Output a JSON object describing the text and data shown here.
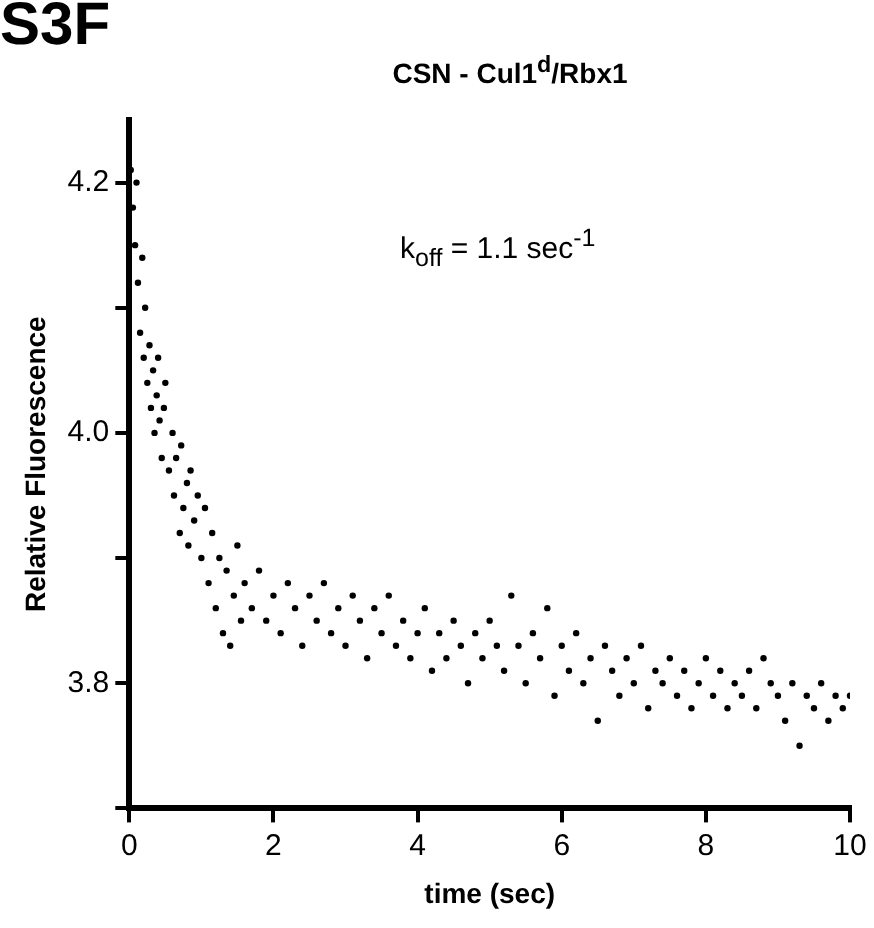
{
  "chart_data": {
    "type": "scatter",
    "title": "CSN - Cul1$^{d}$/Rbx1",
    "xlabel": "time (sec)",
    "ylabel": "Relative Fluorescence",
    "annotations": [
      "S3F",
      "k$_{off}$ = 1.1 sec$^{-1}$"
    ],
    "xlim": [
      0,
      10
    ],
    "xticks": [
      0,
      2,
      4,
      6,
      8,
      10
    ],
    "ylim": [
      3.7,
      4.25
    ],
    "yticks": [
      {
        "value": 3.7,
        "label": null
      },
      3.8,
      {
        "value": 3.9,
        "label": null
      },
      {
        "value": 4.0,
        "label": "4.0"
      },
      {
        "value": 4.1,
        "label": null
      },
      4.2
    ],
    "grid": false,
    "legend": false,
    "marker": "circle",
    "series": [
      {
        "color": "#000000",
        "x": [
          0.02,
          0.05,
          0.08,
          0.1,
          0.12,
          0.15,
          0.18,
          0.2,
          0.22,
          0.25,
          0.28,
          0.3,
          0.33,
          0.35,
          0.38,
          0.4,
          0.42,
          0.45,
          0.48,
          0.5,
          0.55,
          0.6,
          0.62,
          0.65,
          0.7,
          0.72,
          0.75,
          0.8,
          0.82,
          0.85,
          0.9,
          0.95,
          1.0,
          1.05,
          1.1,
          1.15,
          1.2,
          1.25,
          1.3,
          1.35,
          1.4,
          1.45,
          1.5,
          1.55,
          1.6,
          1.7,
          1.8,
          1.9,
          2.0,
          2.1,
          2.2,
          2.3,
          2.4,
          2.5,
          2.6,
          2.7,
          2.8,
          2.9,
          3.0,
          3.1,
          3.2,
          3.3,
          3.4,
          3.5,
          3.6,
          3.7,
          3.8,
          3.9,
          4.0,
          4.1,
          4.2,
          4.3,
          4.4,
          4.5,
          4.6,
          4.7,
          4.8,
          4.9,
          5.0,
          5.1,
          5.2,
          5.3,
          5.4,
          5.5,
          5.6,
          5.7,
          5.8,
          5.9,
          6.0,
          6.1,
          6.2,
          6.3,
          6.4,
          6.5,
          6.6,
          6.7,
          6.8,
          6.9,
          7.0,
          7.1,
          7.2,
          7.3,
          7.4,
          7.5,
          7.6,
          7.7,
          7.8,
          7.9,
          8.0,
          8.1,
          8.2,
          8.3,
          8.4,
          8.5,
          8.6,
          8.7,
          8.8,
          8.9,
          9.0,
          9.1,
          9.2,
          9.3,
          9.4,
          9.5,
          9.6,
          9.7,
          9.8,
          9.9,
          10.0
        ],
        "values": [
          4.21,
          4.18,
          4.15,
          4.2,
          4.12,
          4.08,
          4.14,
          4.06,
          4.1,
          4.04,
          4.07,
          4.02,
          4.05,
          4.0,
          4.03,
          4.06,
          4.01,
          3.98,
          4.02,
          4.04,
          3.97,
          4.0,
          3.95,
          3.98,
          3.92,
          3.99,
          3.94,
          3.96,
          3.91,
          3.97,
          3.93,
          3.95,
          3.9,
          3.94,
          3.88,
          3.92,
          3.86,
          3.9,
          3.84,
          3.89,
          3.83,
          3.87,
          3.91,
          3.85,
          3.88,
          3.86,
          3.89,
          3.85,
          3.87,
          3.84,
          3.88,
          3.86,
          3.83,
          3.87,
          3.85,
          3.88,
          3.84,
          3.86,
          3.83,
          3.87,
          3.85,
          3.82,
          3.86,
          3.84,
          3.87,
          3.83,
          3.85,
          3.82,
          3.84,
          3.86,
          3.81,
          3.84,
          3.82,
          3.85,
          3.83,
          3.8,
          3.84,
          3.82,
          3.85,
          3.83,
          3.81,
          3.87,
          3.83,
          3.8,
          3.84,
          3.82,
          3.86,
          3.79,
          3.83,
          3.81,
          3.84,
          3.8,
          3.82,
          3.77,
          3.83,
          3.81,
          3.79,
          3.82,
          3.8,
          3.83,
          3.78,
          3.81,
          3.8,
          3.82,
          3.79,
          3.81,
          3.78,
          3.8,
          3.82,
          3.79,
          3.81,
          3.78,
          3.8,
          3.79,
          3.81,
          3.78,
          3.82,
          3.8,
          3.79,
          3.77,
          3.8,
          3.75,
          3.79,
          3.78,
          3.8,
          3.77,
          3.79,
          3.78,
          3.79
        ]
      }
    ]
  }
}
